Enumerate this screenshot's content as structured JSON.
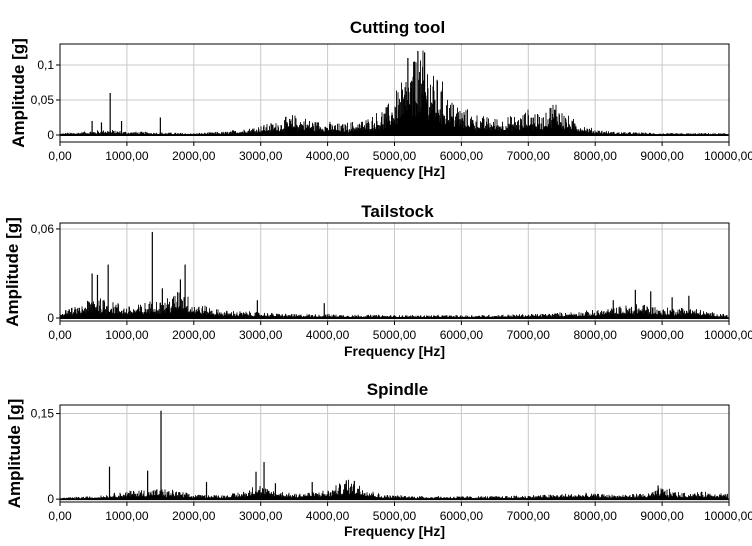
{
  "chart_data": [
    {
      "type": "line",
      "title": "Cutting tool",
      "xlabel": "Frequency [Hz]",
      "ylabel": "Amplitude [g]",
      "xlim": [
        0,
        10000
      ],
      "ylim": [
        -0.01,
        0.13
      ],
      "x_ticks": [
        0,
        1000,
        2000,
        3000,
        4000,
        5000,
        6000,
        7000,
        8000,
        9000,
        10000
      ],
      "x_tick_labels": [
        "0,00",
        "1000,00",
        "2000,00",
        "3000,00",
        "4000,00",
        "5000,00",
        "6000,00",
        "7000,00",
        "8000,00",
        "9000,00",
        "10000,00"
      ],
      "y_ticks": [
        0,
        0.05,
        0.1
      ],
      "y_tick_labels": [
        "0",
        "0,05",
        "0,1"
      ],
      "grid": true,
      "series": [
        {
          "envelope": [
            [
              0,
              0.002
            ],
            [
              400,
              0.004
            ],
            [
              700,
              0.006
            ],
            [
              1000,
              0.004
            ],
            [
              1500,
              0.003
            ],
            [
              2000,
              0.002
            ],
            [
              2500,
              0.004
            ],
            [
              2800,
              0.008
            ],
            [
              3200,
              0.014
            ],
            [
              3500,
              0.022
            ],
            [
              3800,
              0.016
            ],
            [
              4200,
              0.012
            ],
            [
              4600,
              0.018
            ],
            [
              4900,
              0.032
            ],
            [
              5100,
              0.06
            ],
            [
              5300,
              0.08
            ],
            [
              5450,
              0.088
            ],
            [
              5600,
              0.07
            ],
            [
              5800,
              0.045
            ],
            [
              6000,
              0.03
            ],
            [
              6300,
              0.02
            ],
            [
              6600,
              0.018
            ],
            [
              6900,
              0.022
            ],
            [
              7050,
              0.03
            ],
            [
              7200,
              0.02
            ],
            [
              7400,
              0.04
            ],
            [
              7600,
              0.02
            ],
            [
              7900,
              0.008
            ],
            [
              8200,
              0.004
            ],
            [
              9000,
              0.002
            ],
            [
              10000,
              0.002
            ]
          ],
          "peaks": [
            [
              750,
              0.06
            ],
            [
              480,
              0.02
            ],
            [
              620,
              0.018
            ],
            [
              920,
              0.02
            ],
            [
              1500,
              0.025
            ],
            [
              5200,
              0.11
            ],
            [
              5350,
              0.12
            ],
            [
              5450,
              0.118
            ],
            [
              5300,
              0.105
            ]
          ]
        }
      ]
    },
    {
      "type": "line",
      "title": "Tailstock",
      "xlabel": "Frequency [Hz]",
      "ylabel": "Amplitude [g]",
      "xlim": [
        0,
        10000
      ],
      "ylim": [
        -0.002,
        0.064
      ],
      "x_ticks": [
        0,
        1000,
        2000,
        3000,
        4000,
        5000,
        6000,
        7000,
        8000,
        9000,
        10000
      ],
      "x_tick_labels": [
        "0,00",
        "1000,00",
        "2000,00",
        "3000,00",
        "4000,00",
        "5000,00",
        "6000,00",
        "7000,00",
        "8000,00",
        "9000,00",
        "10000,00"
      ],
      "y_ticks": [
        0,
        0.06
      ],
      "y_tick_labels": [
        "0",
        "0,06"
      ],
      "grid": true,
      "series": [
        {
          "envelope": [
            [
              0,
              0.004
            ],
            [
              300,
              0.006
            ],
            [
              500,
              0.012
            ],
            [
              700,
              0.01
            ],
            [
              1000,
              0.006
            ],
            [
              1300,
              0.008
            ],
            [
              1500,
              0.01
            ],
            [
              1700,
              0.012
            ],
            [
              1800,
              0.016
            ],
            [
              2000,
              0.008
            ],
            [
              2400,
              0.004
            ],
            [
              3000,
              0.003
            ],
            [
              3500,
              0.002
            ],
            [
              4000,
              0.002
            ],
            [
              5000,
              0.0015
            ],
            [
              6000,
              0.0015
            ],
            [
              7000,
              0.002
            ],
            [
              7600,
              0.003
            ],
            [
              8000,
              0.004
            ],
            [
              8400,
              0.006
            ],
            [
              8700,
              0.008
            ],
            [
              9000,
              0.005
            ],
            [
              9400,
              0.006
            ],
            [
              9700,
              0.003
            ],
            [
              10000,
              0.002
            ]
          ],
          "peaks": [
            [
              480,
              0.03
            ],
            [
              560,
              0.029
            ],
            [
              720,
              0.036
            ],
            [
              1380,
              0.058
            ],
            [
              1530,
              0.02
            ],
            [
              1870,
              0.036
            ],
            [
              1800,
              0.026
            ],
            [
              2950,
              0.012
            ],
            [
              3950,
              0.01
            ],
            [
              8600,
              0.019
            ],
            [
              8830,
              0.018
            ],
            [
              9150,
              0.014
            ],
            [
              9400,
              0.015
            ],
            [
              8270,
              0.012
            ]
          ]
        }
      ]
    },
    {
      "type": "line",
      "title": "Spindle",
      "xlabel": "Frequency [Hz]",
      "ylabel": "Amplitude [g]",
      "xlim": [
        0,
        10000
      ],
      "ylim": [
        -0.005,
        0.165
      ],
      "x_ticks": [
        0,
        1000,
        2000,
        3000,
        4000,
        5000,
        6000,
        7000,
        8000,
        9000,
        10000
      ],
      "x_tick_labels": [
        "0,00",
        "1000,00",
        "2000,00",
        "3000,00",
        "4000,00",
        "5000,00",
        "6000,00",
        "7000,00",
        "8000,00",
        "9000,00",
        "10000,00"
      ],
      "y_ticks": [
        0,
        0.15
      ],
      "y_tick_labels": [
        "0",
        "0,15"
      ],
      "grid": true,
      "series": [
        {
          "envelope": [
            [
              0,
              0.002
            ],
            [
              500,
              0.004
            ],
            [
              800,
              0.008
            ],
            [
              1100,
              0.012
            ],
            [
              1400,
              0.014
            ],
            [
              1700,
              0.012
            ],
            [
              2000,
              0.006
            ],
            [
              2500,
              0.006
            ],
            [
              2800,
              0.012
            ],
            [
              2950,
              0.022
            ],
            [
              3100,
              0.014
            ],
            [
              3500,
              0.008
            ],
            [
              4000,
              0.012
            ],
            [
              4300,
              0.026
            ],
            [
              4500,
              0.02
            ],
            [
              4800,
              0.006
            ],
            [
              5500,
              0.004
            ],
            [
              6500,
              0.004
            ],
            [
              7200,
              0.006
            ],
            [
              7800,
              0.008
            ],
            [
              8300,
              0.006
            ],
            [
              8800,
              0.008
            ],
            [
              9000,
              0.016
            ],
            [
              9300,
              0.008
            ],
            [
              9700,
              0.01
            ],
            [
              10000,
              0.008
            ]
          ],
          "peaks": [
            [
              740,
              0.057
            ],
            [
              1310,
              0.05
            ],
            [
              1510,
              0.155
            ],
            [
              2190,
              0.03
            ],
            [
              2930,
              0.048
            ],
            [
              3050,
              0.065
            ],
            [
              3220,
              0.028
            ],
            [
              3770,
              0.03
            ],
            [
              4280,
              0.033
            ],
            [
              4400,
              0.032
            ],
            [
              8940,
              0.024
            ]
          ]
        }
      ]
    }
  ]
}
